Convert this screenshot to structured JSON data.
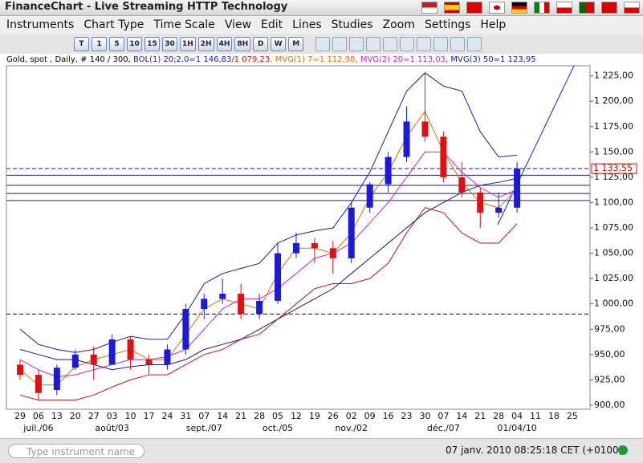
{
  "app": {
    "title": "FinanceChart - Live Streaming HTTP Technology",
    "menu": [
      "Instruments",
      "Chart Type",
      "Time Scale",
      "View",
      "Edit",
      "Lines",
      "Studies",
      "Zoom",
      "Settings",
      "Help"
    ],
    "toolbar": [
      "T",
      "1",
      "5",
      "10",
      "15",
      "30",
      "1H",
      "2H",
      "4H",
      "8H",
      "D",
      "W",
      "M"
    ],
    "search_placeholder": "Type instrument name",
    "clock": "07 janv. 2010 08:25:18 CET (+0100)"
  },
  "chart_data": {
    "type": "candlestick",
    "info": [
      {
        "text": "Gold, spot , Daily, # 140 / 300, ",
        "color": "#000000"
      },
      {
        "text": "BOL(1) 20;2.0=1 146,83",
        "color": "#1a1aa8"
      },
      {
        "text": "/1 079,23",
        "color": "#cc1111"
      },
      {
        "text": ", MVG(1) 7=1 112,98",
        "color": "#e07000"
      },
      {
        "text": ", MVG(2) 20=1 113,03",
        "color": "#cc22cc"
      },
      {
        "text": ", MVG(3) 50=1 123,95",
        "color": "#1a1a88"
      }
    ],
    "categories": [
      "29",
      "06",
      "13",
      "20",
      "27",
      "03",
      "10",
      "17",
      "24",
      "31",
      "07",
      "14",
      "21",
      "28",
      "05",
      "12",
      "19",
      "26",
      "02",
      "09",
      "16",
      "23",
      "30",
      "07",
      "14",
      "21",
      "28",
      "04",
      "11",
      "18",
      "25"
    ],
    "month_labels": [
      null,
      "juil./06",
      null,
      null,
      null,
      "août/03",
      null,
      null,
      null,
      null,
      "sept./07",
      null,
      null,
      null,
      "oct./05",
      null,
      null,
      null,
      "nov./02",
      null,
      null,
      null,
      null,
      "déc./07",
      null,
      null,
      null,
      "01/04/10",
      null,
      null,
      null
    ],
    "open": [
      940,
      930,
      915,
      937,
      950,
      940,
      965,
      945,
      940,
      955,
      995,
      1005,
      1010,
      990,
      1003,
      1050,
      1060,
      1055,
      1045,
      1095,
      1118,
      1145,
      1180,
      1165,
      1125,
      1110,
      1090,
      1095,
      null,
      null,
      null
    ],
    "high": [
      945,
      935,
      940,
      955,
      958,
      970,
      968,
      950,
      960,
      1000,
      1010,
      1025,
      1020,
      1010,
      1060,
      1070,
      1065,
      1062,
      1100,
      1120,
      1150,
      1195,
      1227,
      1170,
      1140,
      1115,
      1110,
      1140,
      null,
      null,
      null
    ],
    "low": [
      925,
      905,
      910,
      935,
      925,
      940,
      935,
      930,
      935,
      950,
      985,
      1000,
      985,
      985,
      1000,
      1045,
      1040,
      1030,
      1040,
      1090,
      1110,
      1140,
      1160,
      1120,
      1105,
      1075,
      1085,
      1090,
      null,
      null,
      null
    ],
    "close": [
      930,
      912,
      937,
      950,
      940,
      965,
      945,
      940,
      955,
      995,
      1005,
      1010,
      990,
      1003,
      1050,
      1060,
      1055,
      1045,
      1095,
      1118,
      1145,
      1180,
      1165,
      1125,
      1110,
      1090,
      1095,
      1133.55,
      null,
      null,
      null
    ],
    "up_color": "#1a1ad8",
    "down_color": "#dd1111",
    "series": [
      {
        "name": "BOL upper",
        "color": "#1a1aa8",
        "values": [
          975,
          960,
          955,
          952,
          955,
          962,
          968,
          965,
          965,
          990,
          1020,
          1030,
          1035,
          1040,
          1060,
          1068,
          1072,
          1075,
          1100,
          1130,
          1170,
          1210,
          1228,
          1215,
          1210,
          1170,
          1145,
          1146.83,
          null,
          null,
          null
        ]
      },
      {
        "name": "BOL lower",
        "color": "#cc1111",
        "values": [
          910,
          905,
          905,
          905,
          910,
          918,
          925,
          930,
          930,
          940,
          950,
          955,
          965,
          970,
          985,
          1000,
          1015,
          1020,
          1020,
          1025,
          1040,
          1070,
          1095,
          1090,
          1070,
          1060,
          1060,
          1079.23,
          null,
          null,
          null
        ]
      },
      {
        "name": "MVG 7",
        "color": "#e07000",
        "values": [
          935,
          920,
          920,
          938,
          945,
          950,
          955,
          945,
          945,
          970,
          995,
          1005,
          1000,
          995,
          1030,
          1055,
          1055,
          1050,
          1070,
          1105,
          1130,
          1165,
          1190,
          1150,
          1120,
          1100,
          1095,
          1112.98,
          null,
          null,
          null
        ]
      },
      {
        "name": "MVG 20",
        "color": "#cc22cc",
        "values": [
          945,
          935,
          928,
          930,
          935,
          940,
          945,
          945,
          948,
          955,
          975,
          995,
          1005,
          1005,
          1015,
          1030,
          1045,
          1050,
          1060,
          1080,
          1100,
          1125,
          1150,
          1150,
          1130,
          1115,
          1105,
          1113.03,
          null,
          null,
          null
        ]
      },
      {
        "name": "MVG 50",
        "color": "#1a1a88",
        "values": [
          955,
          950,
          945,
          945,
          940,
          935,
          938,
          940,
          940,
          945,
          955,
          960,
          965,
          975,
          985,
          995,
          1005,
          1015,
          1030,
          1045,
          1060,
          1075,
          1090,
          1100,
          1110,
          1117,
          1120,
          1123.95,
          null,
          null,
          null
        ]
      }
    ],
    "hlines": [
      {
        "value": 1127,
        "dashed": false
      },
      {
        "value": 1117,
        "dashed": false
      },
      {
        "value": 1109,
        "dashed": false
      },
      {
        "value": 1102,
        "dashed": false
      },
      {
        "value": 990,
        "dashed": true
      }
    ],
    "last_price": {
      "value": 1133.55,
      "label": "1 133,55"
    },
    "ylim": [
      896,
      1235
    ],
    "yticks": [
      {
        "value": 900,
        "label": "900,00"
      },
      {
        "value": 925,
        "label": "925,00"
      },
      {
        "value": 950,
        "label": "950,00"
      },
      {
        "value": 975,
        "label": "975,00"
      },
      {
        "value": 1000,
        "label": "1 000,00"
      },
      {
        "value": 1025,
        "label": "1 025,00"
      },
      {
        "value": 1050,
        "label": "1 050,00"
      },
      {
        "value": 1075,
        "label": "1 075,00"
      },
      {
        "value": 1100,
        "label": "1 100,00"
      },
      {
        "value": 1125,
        "label": "1 125,00"
      },
      {
        "value": 1150,
        "label": "1 150,00"
      },
      {
        "value": 1175,
        "label": "1 175,00"
      },
      {
        "value": 1200,
        "label": "1 200,00"
      },
      {
        "value": 1225,
        "label": "1 225,00"
      }
    ]
  }
}
